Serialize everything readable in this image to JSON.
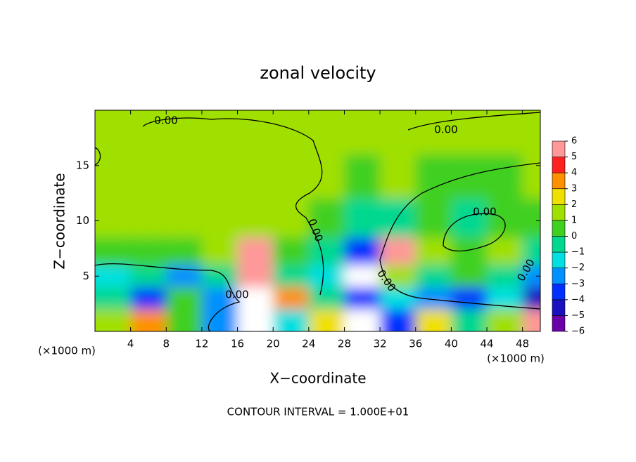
{
  "chart_data": {
    "type": "heatmap",
    "title": "zonal velocity",
    "x_label": "X−coordinate",
    "y_label": "Z−coordinate",
    "x_unit": "(×1000 m)",
    "y_unit": "(×1000 m)",
    "footnote": "CONTOUR INTERVAL = 1.000E+01",
    "xlim": [
      0,
      50
    ],
    "ylim": [
      0,
      20
    ],
    "xticks": [
      4,
      8,
      12,
      16,
      20,
      24,
      28,
      32,
      36,
      40,
      44,
      48
    ],
    "yticks": [
      5,
      10,
      15
    ],
    "x": [
      2,
      6,
      10,
      14,
      18,
      22,
      26,
      30,
      34,
      38,
      42,
      46,
      50
    ],
    "y": [
      1,
      3,
      5,
      7,
      10,
      14,
      18
    ],
    "z": [
      [
        1,
        3,
        0,
        -3,
        7,
        -2,
        2,
        7,
        -4,
        2,
        -1,
        1,
        5
      ],
      [
        -1,
        -4,
        0,
        -3,
        7,
        3,
        -1,
        -4,
        -2,
        -3,
        -4,
        -2,
        -5
      ],
      [
        -2,
        -1,
        -3,
        -1,
        5,
        -1,
        -2,
        -7,
        1,
        -1,
        0,
        -1,
        -3
      ],
      [
        0,
        0,
        0,
        1,
        5,
        0,
        -1,
        -4,
        5,
        1,
        0,
        1,
        -1
      ],
      [
        1,
        1,
        1,
        1,
        1,
        1,
        0,
        -1,
        -1,
        0,
        -1,
        0,
        0
      ],
      [
        1,
        1,
        1,
        1,
        1,
        1,
        1,
        0,
        1,
        0,
        0,
        0,
        1
      ],
      [
        1,
        1,
        1,
        1,
        1,
        1,
        1,
        1,
        1,
        1,
        1,
        1,
        1
      ]
    ],
    "clim": [
      -6,
      6
    ],
    "cticks": [
      6,
      5,
      4,
      3,
      2,
      1,
      0,
      {
        "value": -1,
        "label": "−1"
      },
      {
        "value": -2,
        "label": "−2"
      },
      {
        "value": -3,
        "label": "−3"
      },
      {
        "value": -4,
        "label": "−4"
      },
      {
        "value": -5,
        "label": "−5"
      },
      {
        "value": -6,
        "label": "−6"
      }
    ],
    "colors": [
      "#6a00a8",
      "#1a10c0",
      "#0030ff",
      "#0090ff",
      "#00e0e0",
      "#00d890",
      "#40d020",
      "#a0e000",
      "#f0e000",
      "#ff9000",
      "#ff2020",
      "#ff9898"
    ],
    "contour_labels": [
      "0.00",
      "0.00",
      "0.00",
      "0.00",
      "0.00",
      "0.00",
      "0.00"
    ]
  }
}
